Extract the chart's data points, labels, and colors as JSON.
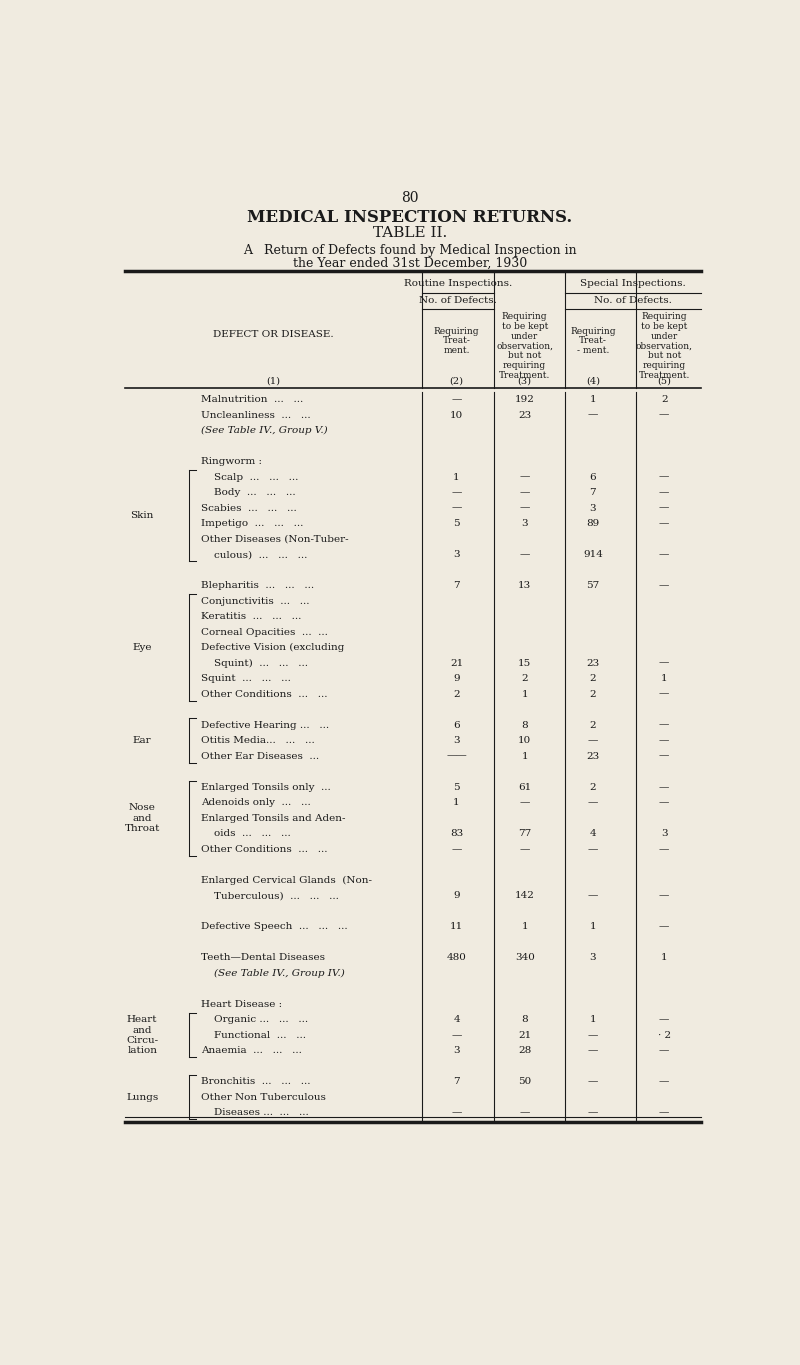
{
  "page_number": "80",
  "title1": "MEDICAL INSPECTION RETURNS.",
  "title2": "TABLE II.",
  "subtitle1": "A   Return of Defects found by Medical Inspection in",
  "subtitle2": "the Year ended 31st December, 1930",
  "bg_color": "#f0ebe0",
  "text_color": "#1a1a1a",
  "col_headers": {
    "routine": "Routine Inspections.",
    "special": "Special Inspections.",
    "no_defects": "No. of Defects.",
    "col_nums": [
      "(1)",
      "(2)",
      "(3)",
      "(4)",
      "(5)"
    ]
  },
  "rows": [
    {
      "category": "",
      "defect": "Malnutrition  ...   ...",
      "c2": "—",
      "c3": "192",
      "c4": "1",
      "c5": "2"
    },
    {
      "category": "",
      "defect": "Uncleanliness  ...   ...",
      "c2": "10",
      "c3": "23",
      "c4": "—",
      "c5": "—"
    },
    {
      "category": "",
      "defect": "(See Table IV., Group V.)",
      "c2": "",
      "c3": "",
      "c4": "",
      "c5": "",
      "italic": true
    },
    {
      "category": "",
      "defect": "",
      "c2": "",
      "c3": "",
      "c4": "",
      "c5": ""
    },
    {
      "category": "",
      "defect": "Ringworm :",
      "c2": "",
      "c3": "",
      "c4": "",
      "c5": ""
    },
    {
      "category": "Skin",
      "defect": "    Scalp  ...   ...   ...",
      "c2": "1",
      "c3": "—",
      "c4": "6",
      "c5": "—",
      "bstart": 5,
      "bend": 10
    },
    {
      "category": "",
      "defect": "    Body  ...   ...   ...",
      "c2": "—",
      "c3": "—",
      "c4": "7",
      "c5": "—"
    },
    {
      "category": "",
      "defect": "Scabies  ...   ...   ...",
      "c2": "—",
      "c3": "—",
      "c4": "3",
      "c5": "—"
    },
    {
      "category": "",
      "defect": "Impetigo  ...   ...   ...",
      "c2": "5",
      "c3": "3",
      "c4": "89",
      "c5": "—"
    },
    {
      "category": "",
      "defect": "Other Diseases (Non-Tuber-",
      "c2": "",
      "c3": "",
      "c4": "",
      "c5": ""
    },
    {
      "category": "",
      "defect": "    culous)  ...   ...   ...",
      "c2": "3",
      "c3": "—",
      "c4": "914",
      "c5": "—"
    },
    {
      "category": "",
      "defect": "",
      "c2": "",
      "c3": "",
      "c4": "",
      "c5": ""
    },
    {
      "category": "",
      "defect": "Blepharitis  ...   ...   ...",
      "c2": "7",
      "c3": "13",
      "c4": "57",
      "c5": "—"
    },
    {
      "category": "",
      "defect": "Conjunctivitis  ...   ...",
      "c2": "",
      "c3": "",
      "c4": "",
      "c5": ""
    },
    {
      "category": "Eye",
      "defect": "Keratitis  ...   ...   ...",
      "c2": "",
      "c3": "",
      "c4": "",
      "c5": "",
      "bstart": 13,
      "bend": 19
    },
    {
      "category": "",
      "defect": "Corneal Opacities  ...  ...",
      "c2": "",
      "c3": "",
      "c4": "",
      "c5": ""
    },
    {
      "category": "",
      "defect": "Defective Vision (excluding",
      "c2": "",
      "c3": "",
      "c4": "",
      "c5": ""
    },
    {
      "category": "",
      "defect": "    Squint)  ...   ...   ...",
      "c2": "21",
      "c3": "15",
      "c4": "23",
      "c5": "—"
    },
    {
      "category": "",
      "defect": "Squint  ...   ...   ...",
      "c2": "9",
      "c3": "2",
      "c4": "2",
      "c5": "1"
    },
    {
      "category": "",
      "defect": "Other Conditions  ...   ...",
      "c2": "2",
      "c3": "1",
      "c4": "2",
      "c5": "—"
    },
    {
      "category": "",
      "defect": "",
      "c2": "",
      "c3": "",
      "c4": "",
      "c5": ""
    },
    {
      "category": "",
      "defect": "Defective Hearing ...   ...",
      "c2": "6",
      "c3": "8",
      "c4": "2",
      "c5": "—"
    },
    {
      "category": "Ear",
      "defect": "Otitis Media...   ...   ...",
      "c2": "3",
      "c3": "10",
      "c4": "—",
      "c5": "—",
      "bstart": 21,
      "bend": 23
    },
    {
      "category": "",
      "defect": "Other Ear Diseases  ...",
      "c2": "——",
      "c3": "1",
      "c4": "23",
      "c5": "—"
    },
    {
      "category": "",
      "defect": "",
      "c2": "",
      "c3": "",
      "c4": "",
      "c5": ""
    },
    {
      "category": "",
      "defect": "Enlarged Tonsils only  ...",
      "c2": "5",
      "c3": "61",
      "c4": "2",
      "c5": "—"
    },
    {
      "category": "Nose\nand\nThroat",
      "defect": "Adenoids only  ...   ...",
      "c2": "1",
      "c3": "—",
      "c4": "—",
      "c5": "—",
      "bstart": 25,
      "bend": 29
    },
    {
      "category": "",
      "defect": "Enlarged Tonsils and Aden-",
      "c2": "",
      "c3": "",
      "c4": "",
      "c5": ""
    },
    {
      "category": "",
      "defect": "    oids  ...   ...   ...",
      "c2": "83",
      "c3": "77",
      "c4": "4",
      "c5": "3"
    },
    {
      "category": "",
      "defect": "Other Conditions  ...   ...",
      "c2": "—",
      "c3": "—",
      "c4": "—",
      "c5": "—"
    },
    {
      "category": "",
      "defect": "",
      "c2": "",
      "c3": "",
      "c4": "",
      "c5": ""
    },
    {
      "category": "",
      "defect": "Enlarged Cervical Glands  (Non-",
      "c2": "",
      "c3": "",
      "c4": "",
      "c5": ""
    },
    {
      "category": "",
      "defect": "    Tuberculous)  ...   ...   ...",
      "c2": "9",
      "c3": "142",
      "c4": "—",
      "c5": "—"
    },
    {
      "category": "",
      "defect": "",
      "c2": "",
      "c3": "",
      "c4": "",
      "c5": ""
    },
    {
      "category": "",
      "defect": "Defective Speech  ...   ...   ...",
      "c2": "11",
      "c3": "1",
      "c4": "1",
      "c5": "—"
    },
    {
      "category": "",
      "defect": "",
      "c2": "",
      "c3": "",
      "c4": "",
      "c5": ""
    },
    {
      "category": "",
      "defect": "Teeth—Dental Diseases",
      "c2": "480",
      "c3": "340",
      "c4": "3",
      "c5": "1"
    },
    {
      "category": "",
      "defect": "    (See Table IV., Group IV.)",
      "c2": "",
      "c3": "",
      "c4": "",
      "c5": "",
      "italic": true
    },
    {
      "category": "",
      "defect": "",
      "c2": "",
      "c3": "",
      "c4": "",
      "c5": ""
    },
    {
      "category": "",
      "defect": "Heart Disease :",
      "c2": "",
      "c3": "",
      "c4": "",
      "c5": ""
    },
    {
      "category": "Heart\nand\nCircu-\nlation",
      "defect": "    Organic ...   ...   ...",
      "c2": "4",
      "c3": "8",
      "c4": "1",
      "c5": "—",
      "bstart": 40,
      "bend": 42
    },
    {
      "category": "",
      "defect": "    Functional  ...   ...",
      "c2": "—",
      "c3": "21",
      "c4": "—",
      "c5": "· 2"
    },
    {
      "category": "",
      "defect": "Anaemia  ...   ...   ...",
      "c2": "3",
      "c3": "28",
      "c4": "—",
      "c5": "—"
    },
    {
      "category": "",
      "defect": "",
      "c2": "",
      "c3": "",
      "c4": "",
      "c5": ""
    },
    {
      "category": "",
      "defect": "Bronchitis  ...   ...   ...",
      "c2": "7",
      "c3": "50",
      "c4": "—",
      "c5": "—"
    },
    {
      "category": "Lungs",
      "defect": "Other Non Tuberculous",
      "c2": "",
      "c3": "",
      "c4": "",
      "c5": "",
      "bstart": 44,
      "bend": 46
    },
    {
      "category": "",
      "defect": "    Diseases ...  ...   ...",
      "c2": "—",
      "c3": "—",
      "c4": "—",
      "c5": "—"
    }
  ],
  "brackets": [
    {
      "cat": "Skin",
      "bstart": 5,
      "bend": 10
    },
    {
      "cat": "Eye",
      "bstart": 13,
      "bend": 19
    },
    {
      "cat": "Ear",
      "bstart": 21,
      "bend": 23
    },
    {
      "cat": "Nose\nand\nThroat",
      "bstart": 25,
      "bend": 29
    },
    {
      "cat": "Heart\nand\nCircu-\nlation",
      "bstart": 40,
      "bend": 42
    },
    {
      "cat": "Lungs",
      "bstart": 44,
      "bend": 46
    }
  ]
}
